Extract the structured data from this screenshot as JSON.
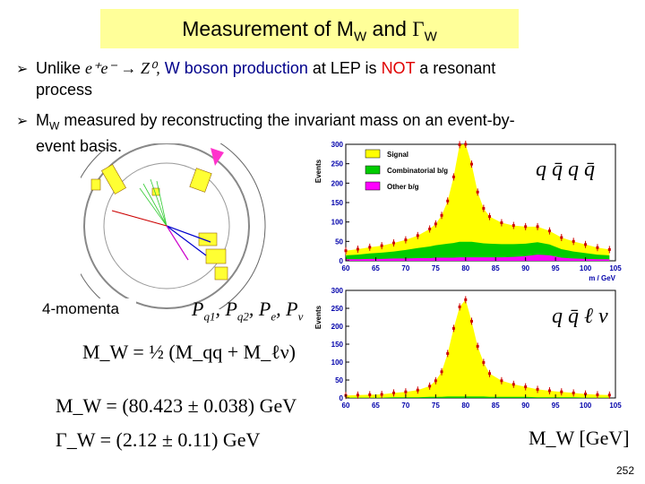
{
  "slide": {
    "title": "Measurement of M",
    "title_sub_w": "W",
    "title_and": " and ",
    "title_gamma": "Γ",
    "page_number": "252"
  },
  "bullets": [
    {
      "pre": "Unlike ",
      "formula": "e⁺e⁻ → Z⁰,",
      "blue_text": " W boson production",
      "mid": " at LEP is ",
      "red_text": "NOT",
      "post": " a resonant",
      "line2": "process"
    },
    {
      "pre": "M",
      "sub": "W",
      "text": " measured by reconstructing the invariant mass on an event-by-",
      "line2": "event basis."
    }
  ],
  "labels": {
    "four_momenta": "4-momenta",
    "momenta_list": "P",
    "channel_top": "q q̄ q q̄",
    "channel_bottom": "q q̄ ℓ ν",
    "axis_label": "M_W [GeV]"
  },
  "equations": {
    "mw_def": "M_W = ½ (M_qq + M_ℓν)",
    "mw_value": "M_W = (80.423 ± 0.038) GeV",
    "gw_value": "Γ_W = (2.12 ± 0.11) GeV"
  },
  "chart_data": [
    {
      "type": "area",
      "ylabel": "Events",
      "xlabel": "m / GeV",
      "xlim": [
        60,
        105
      ],
      "ylim": [
        0,
        300
      ],
      "xticks": [
        60,
        65,
        70,
        75,
        80,
        85,
        90,
        95,
        100,
        105
      ],
      "yticks": [
        0,
        50,
        100,
        150,
        200,
        250,
        300
      ],
      "legend": [
        "Signal",
        "Combinatorial b/g",
        "Other b/g"
      ],
      "legend_position": "top-left",
      "x": [
        60,
        62,
        64,
        66,
        68,
        70,
        72,
        74,
        75,
        76,
        77,
        78,
        79,
        80,
        81,
        82,
        83,
        84,
        86,
        88,
        90,
        92,
        94,
        96,
        98,
        100,
        102,
        104
      ],
      "series": [
        {
          "name": "Signal",
          "color": "#ffff00",
          "values": [
            12,
            14,
            16,
            18,
            22,
            26,
            32,
            45,
            55,
            75,
            110,
            170,
            250,
            260,
            200,
            130,
            90,
            70,
            55,
            48,
            44,
            40,
            35,
            30,
            26,
            22,
            18,
            15
          ]
        },
        {
          "name": "Combinatorial b/g",
          "color": "#00cc00",
          "values": [
            10,
            12,
            14,
            16,
            18,
            22,
            26,
            30,
            32,
            34,
            36,
            38,
            40,
            40,
            40,
            38,
            36,
            35,
            34,
            33,
            32,
            32,
            28,
            22,
            18,
            15,
            12,
            10
          ]
        },
        {
          "name": "Other b/g",
          "color": "#ff00ff",
          "values": [
            4,
            4,
            5,
            5,
            6,
            6,
            7,
            7,
            8,
            8,
            8,
            8,
            9,
            9,
            9,
            9,
            9,
            9,
            9,
            10,
            12,
            16,
            14,
            8,
            6,
            5,
            4,
            4
          ]
        }
      ]
    },
    {
      "type": "area",
      "ylabel": "Events",
      "xlabel": "M_W [GeV]",
      "xlim": [
        60,
        105
      ],
      "ylim": [
        0,
        300
      ],
      "xticks": [
        60,
        65,
        70,
        75,
        80,
        85,
        90,
        95,
        100,
        105
      ],
      "yticks": [
        0,
        50,
        100,
        150,
        200,
        250,
        300
      ],
      "x": [
        60,
        62,
        64,
        66,
        68,
        70,
        72,
        74,
        75,
        76,
        77,
        78,
        79,
        80,
        81,
        82,
        83,
        84,
        86,
        88,
        90,
        92,
        94,
        96,
        98,
        100,
        102,
        104
      ],
      "series": [
        {
          "name": "Signal",
          "color": "#ffff00",
          "values": [
            6,
            7,
            8,
            9,
            12,
            15,
            20,
            30,
            45,
            70,
            120,
            190,
            250,
            270,
            210,
            140,
            95,
            65,
            45,
            35,
            28,
            22,
            18,
            15,
            12,
            10,
            8,
            7
          ]
        },
        {
          "name": "Combinatorial b/g",
          "color": "#00cc00",
          "values": [
            1,
            1,
            1,
            1,
            2,
            2,
            2,
            3,
            3,
            3,
            4,
            4,
            4,
            4,
            4,
            4,
            4,
            3,
            3,
            3,
            3,
            2,
            2,
            2,
            2,
            1,
            1,
            1
          ]
        }
      ]
    }
  ]
}
